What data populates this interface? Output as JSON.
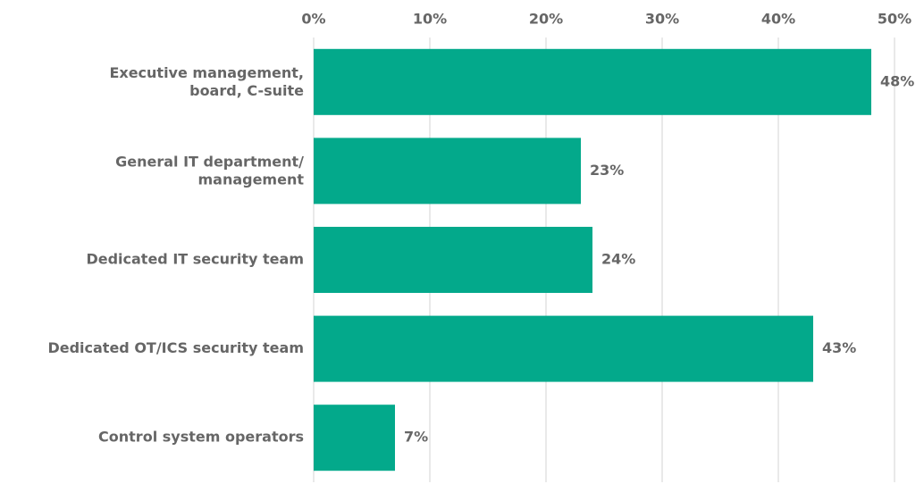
{
  "chart_data": {
    "type": "bar",
    "orientation": "horizontal",
    "categories": [
      "Executive management,\nboard, C-suite",
      "General IT department/\nmanagement",
      "Dedicated IT security team",
      "Dedicated OT/ICS security team",
      "Control system operators"
    ],
    "values": [
      48,
      23,
      24,
      43,
      7
    ],
    "value_labels": [
      "48%",
      "23%",
      "24%",
      "43%",
      "7%"
    ],
    "color": "#03a98b",
    "xlim": [
      0,
      50
    ],
    "xticks": [
      {
        "value": 0,
        "label": "0%"
      },
      {
        "value": 10,
        "label": "10%"
      },
      {
        "value": 20,
        "label": "20%"
      },
      {
        "value": 30,
        "label": "30%"
      },
      {
        "value": 40,
        "label": "40%"
      },
      {
        "value": 50,
        "label": "50%"
      }
    ],
    "grid": true
  }
}
